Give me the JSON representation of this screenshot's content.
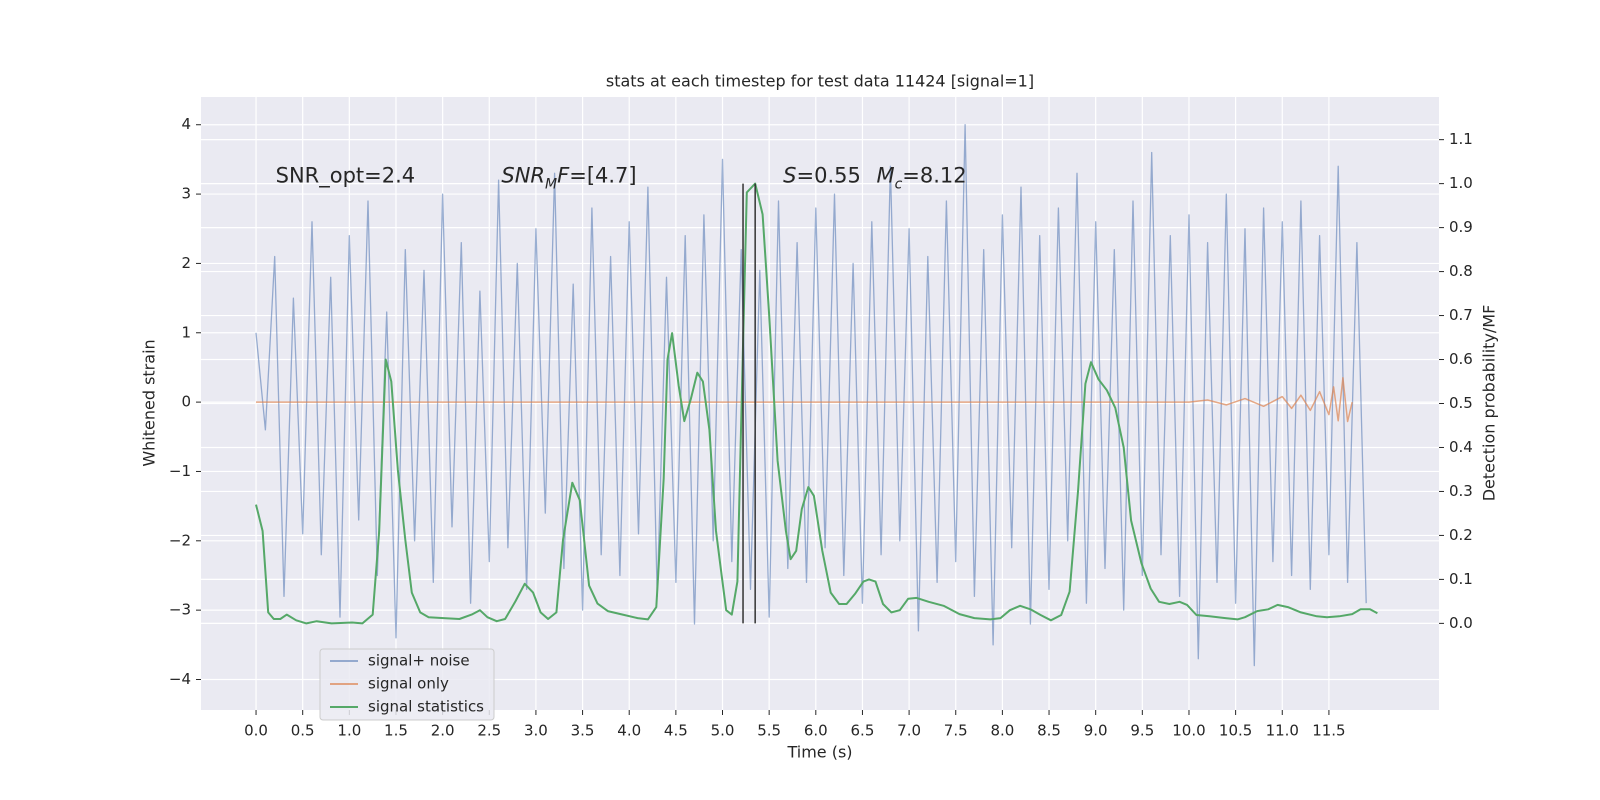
{
  "chart_data": {
    "type": "line",
    "title": "stats at each timestep for test data 11424 [signal=1]",
    "xlabel": "Time (s)",
    "ylabel": "Whitened strain",
    "y2label": "Detection probability/MF",
    "xlim": [
      -0.59,
      12.68
    ],
    "ylim": [
      -4.44,
      4.4
    ],
    "y2lim": [
      -0.197,
      1.197
    ],
    "xticks": [
      {
        "value": 0,
        "label": "0.0"
      },
      0.5,
      {
        "value": 1,
        "label": "1.0"
      },
      1.5,
      {
        "value": 2,
        "label": "2.0"
      },
      2.5,
      {
        "value": 3,
        "label": "3.0"
      },
      3.5,
      {
        "value": 4,
        "label": "4.0"
      },
      4.5,
      {
        "value": 5,
        "label": "5.0"
      },
      5.5,
      {
        "value": 6,
        "label": "6.0"
      },
      6.5,
      {
        "value": 7,
        "label": "7.0"
      },
      7.5,
      {
        "value": 8,
        "label": "8.0"
      },
      8.5,
      {
        "value": 9,
        "label": "9.0"
      },
      9.5,
      {
        "value": 10,
        "label": "10.0"
      },
      10.5,
      {
        "value": 11,
        "label": "11.0"
      },
      11.5
    ],
    "yticks": [
      {
        "value": -4,
        "label": "−4"
      },
      {
        "value": -3,
        "label": "−3"
      },
      {
        "value": -2,
        "label": "−2"
      },
      {
        "value": -1,
        "label": "−1"
      },
      0,
      1,
      2,
      3,
      4
    ],
    "y2ticks": [
      {
        "value": 0,
        "label": "0.0"
      },
      0.1,
      0.2,
      0.3,
      0.4,
      0.5,
      0.6,
      0.7,
      0.8,
      0.9,
      {
        "value": 1,
        "label": "1.0"
      },
      1.1
    ],
    "grid": true,
    "legend": "lower left",
    "series": [
      {
        "name": "signal+ noise",
        "color": "#4c72b0",
        "x": [
          0,
          0.1,
          0.2,
          0.3,
          0.4,
          0.5,
          0.6,
          0.7,
          0.8,
          0.9,
          1,
          1.1,
          1.2,
          1.3,
          1.4,
          1.5,
          1.6,
          1.7,
          1.8,
          1.9,
          2,
          2.1,
          2.2,
          2.3,
          2.4,
          2.5,
          2.6,
          2.7,
          2.8,
          2.9,
          3,
          3.1,
          3.2,
          3.3,
          3.4,
          3.5,
          3.6,
          3.7,
          3.8,
          3.9,
          4,
          4.1,
          4.2,
          4.3,
          4.4,
          4.5,
          4.6,
          4.7,
          4.8,
          4.9,
          5,
          5.1,
          5.2,
          5.3,
          5.4,
          5.5,
          5.6,
          5.7,
          5.8,
          5.9,
          6,
          6.1,
          6.2,
          6.3,
          6.4,
          6.5,
          6.6,
          6.7,
          6.8,
          6.9,
          7,
          7.1,
          7.2,
          7.3,
          7.4,
          7.5,
          7.6,
          7.7,
          7.8,
          7.9,
          8,
          8.1,
          8.2,
          8.3,
          8.4,
          8.5,
          8.6,
          8.7,
          8.8,
          8.9,
          9,
          9.1,
          9.2,
          9.3,
          9.4,
          9.5,
          9.6,
          9.7,
          9.8,
          9.9,
          10,
          10.1,
          10.2,
          10.3,
          10.4,
          10.5,
          10.6,
          10.7,
          10.8,
          10.9,
          11,
          11.1,
          11.2,
          11.3,
          11.4,
          11.5,
          11.6,
          11.7,
          11.8,
          11.9
        ],
        "values": [
          1.0,
          -0.4,
          2.1,
          -2.8,
          1.5,
          -1.9,
          2.6,
          -2.2,
          1.8,
          -3.1,
          2.4,
          -1.7,
          2.9,
          -2.5,
          1.3,
          -3.4,
          2.2,
          -2.0,
          1.9,
          -2.6,
          3.0,
          -1.8,
          2.3,
          -2.9,
          1.6,
          -2.3,
          3.2,
          -2.1,
          2.0,
          -2.7,
          2.5,
          -1.6,
          3.3,
          -2.4,
          1.7,
          -3.0,
          2.8,
          -2.2,
          2.1,
          -2.5,
          2.6,
          -1.9,
          3.1,
          -2.8,
          1.8,
          -2.6,
          2.4,
          -3.2,
          2.7,
          -2.0,
          3.5,
          -2.3,
          2.2,
          -2.7,
          1.9,
          -3.1,
          2.9,
          -2.4,
          2.3,
          -2.6,
          2.8,
          -2.1,
          3.0,
          -2.5,
          2.0,
          -2.9,
          2.6,
          -2.2,
          3.4,
          -2.0,
          2.5,
          -3.3,
          2.1,
          -2.6,
          2.9,
          -2.3,
          4.0,
          -2.8,
          2.2,
          -3.5,
          2.7,
          -2.1,
          3.1,
          -3.2,
          2.4,
          -2.7,
          2.8,
          -2.0,
          3.3,
          -2.9,
          2.6,
          -2.4,
          2.2,
          -3.0,
          2.9,
          -2.5,
          3.6,
          -2.2,
          2.4,
          -2.8,
          2.7,
          -3.7,
          2.3,
          -2.6,
          3.0,
          -2.9,
          2.5,
          -3.8,
          2.8,
          -2.3,
          2.6,
          -2.5,
          2.9,
          -2.7,
          2.4,
          -2.2,
          3.4,
          -2.6,
          2.3,
          -2.9
        ]
      },
      {
        "name": "signal only",
        "color": "#dd8452",
        "x": [
          0,
          10,
          10.2,
          10.4,
          10.6,
          10.8,
          11.0,
          11.1,
          11.2,
          11.3,
          11.4,
          11.5,
          11.55,
          11.6,
          11.65,
          11.7,
          11.75
        ],
        "values": [
          0,
          0,
          0.03,
          -0.04,
          0.05,
          -0.06,
          0.08,
          -0.09,
          0.1,
          -0.12,
          0.15,
          -0.18,
          0.22,
          -0.27,
          0.35,
          -0.28,
          0
        ]
      },
      {
        "name": "signal statistics",
        "color": "#55a868",
        "axis": "y2",
        "x": [
          0,
          0.07,
          0.13,
          0.19,
          0.26,
          0.33,
          0.43,
          0.54,
          0.65,
          0.81,
          1.03,
          1.14,
          1.25,
          1.32,
          1.39,
          1.45,
          1.52,
          1.6,
          1.67,
          1.76,
          1.85,
          2.01,
          2.18,
          2.31,
          2.4,
          2.48,
          2.58,
          2.67,
          2.78,
          2.88,
          2.97,
          3.05,
          3.13,
          3.22,
          3.29,
          3.39,
          3.47,
          3.57,
          3.66,
          3.77,
          3.93,
          4.09,
          4.2,
          4.29,
          4.37,
          4.41,
          4.46,
          4.53,
          4.59,
          4.66,
          4.73,
          4.79,
          4.86,
          4.93,
          4.99,
          5.04,
          5.1,
          5.16,
          5.22,
          5.26,
          5.35,
          5.43,
          5.5,
          5.59,
          5.68,
          5.73,
          5.79,
          5.85,
          5.92,
          5.98,
          6.07,
          6.16,
          6.25,
          6.33,
          6.42,
          6.51,
          6.57,
          6.64,
          6.72,
          6.81,
          6.9,
          6.99,
          7.08,
          7.21,
          7.37,
          7.54,
          7.7,
          7.87,
          7.98,
          8.08,
          8.19,
          8.3,
          8.41,
          8.52,
          8.63,
          8.72,
          8.81,
          8.89,
          8.95,
          9.03,
          9.12,
          9.21,
          9.3,
          9.38,
          9.49,
          9.59,
          9.68,
          9.79,
          9.9,
          9.98,
          10.08,
          10.22,
          10.39,
          10.52,
          10.6,
          10.73,
          10.85,
          10.95,
          11.06,
          11.2,
          11.37,
          11.48,
          11.61,
          11.75,
          11.84,
          11.94,
          12.02
        ],
        "values": [
          0.27,
          0.21,
          0.025,
          0.01,
          0.01,
          0.02,
          0.007,
          0,
          0.005,
          0,
          0.002,
          0,
          0.02,
          0.21,
          0.6,
          0.55,
          0.35,
          0.19,
          0.07,
          0.025,
          0.014,
          0.012,
          0.01,
          0.02,
          0.03,
          0.014,
          0.005,
          0.01,
          0.05,
          0.09,
          0.07,
          0.025,
          0.01,
          0.025,
          0.19,
          0.32,
          0.28,
          0.086,
          0.045,
          0.028,
          0.02,
          0.012,
          0.009,
          0.037,
          0.33,
          0.6,
          0.66,
          0.54,
          0.46,
          0.51,
          0.57,
          0.55,
          0.44,
          0.21,
          0.11,
          0.03,
          0.02,
          0.095,
          0.63,
          0.98,
          1.0,
          0.93,
          0.7,
          0.37,
          0.21,
          0.146,
          0.165,
          0.26,
          0.31,
          0.29,
          0.165,
          0.07,
          0.044,
          0.044,
          0.067,
          0.095,
          0.1,
          0.095,
          0.044,
          0.025,
          0.03,
          0.056,
          0.058,
          0.049,
          0.04,
          0.021,
          0.012,
          0.009,
          0.012,
          0.03,
          0.04,
          0.032,
          0.019,
          0.007,
          0.019,
          0.072,
          0.3,
          0.545,
          0.594,
          0.555,
          0.53,
          0.49,
          0.4,
          0.234,
          0.137,
          0.079,
          0.049,
          0.044,
          0.049,
          0.042,
          0.019,
          0.016,
          0.012,
          0.009,
          0.014,
          0.028,
          0.032,
          0.042,
          0.037,
          0.025,
          0.016,
          0.014,
          0.016,
          0.021,
          0.032,
          0.032,
          0.023
        ]
      }
    ],
    "vlines": [
      5.22,
      5.35
    ],
    "vline_range": [
      0,
      1
    ],
    "vline_color": "#333333",
    "annotations": [
      [
        {
          "text": "SNR_opt=2.4",
          "style": "rm"
        }
      ],
      [
        {
          "text": "SNR",
          "style": "it"
        },
        {
          "text": "M",
          "style": "sub"
        },
        {
          "text": "F",
          "style": "it"
        },
        {
          "text": "=[4.7]",
          "style": "rm"
        }
      ],
      [
        {
          "text": "S",
          "style": "it"
        },
        {
          "text": "=0.55",
          "style": "rm"
        }
      ],
      [
        {
          "text": "M",
          "style": "it"
        },
        {
          "text": "c",
          "style": "sub"
        },
        {
          "text": "=8.12",
          "style": "rm"
        }
      ]
    ]
  }
}
